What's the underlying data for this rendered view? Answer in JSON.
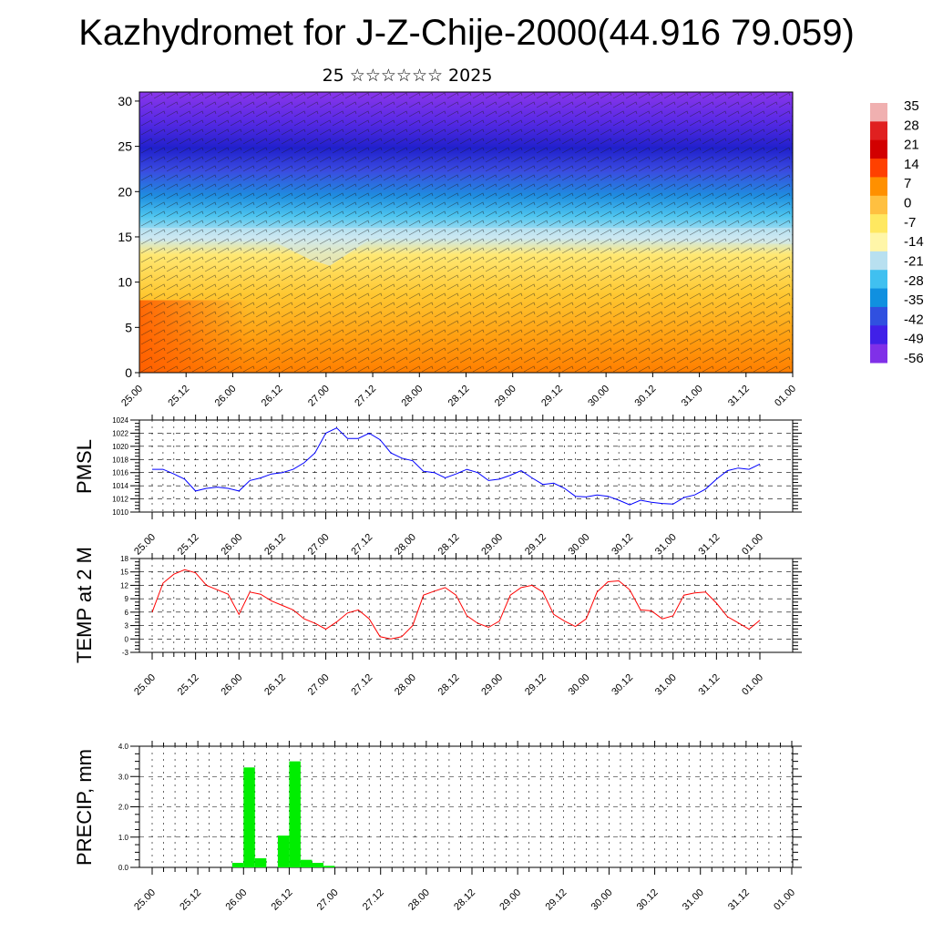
{
  "title": "Kazhydromet for J-Z-Chije-2000(44.916 79.059)",
  "subtitle": "25 ☆☆☆☆☆☆ 2025",
  "time_labels": [
    "25.00",
    "25.12",
    "26.00",
    "26.12",
    "27.00",
    "27.12",
    "28.00",
    "28.12",
    "29.00",
    "29.12",
    "30.00",
    "30.12",
    "31.00",
    "31.12",
    "01.00"
  ],
  "colors": {
    "pmsl": "#0000ff",
    "temp": "#ff0000",
    "precip": "#00ee00"
  },
  "chart_data": [
    {
      "type": "heatmap",
      "title": "",
      "xlabel": "",
      "ylabel": "",
      "x": [
        "25.00",
        "25.12",
        "26.00",
        "26.12",
        "27.00",
        "27.12",
        "28.00",
        "28.12",
        "29.00",
        "29.12",
        "30.00",
        "30.12",
        "31.00",
        "31.12",
        "01.00"
      ],
      "y_ticks": [
        0,
        5,
        10,
        15,
        20,
        25,
        30
      ],
      "ylim": [
        0,
        31
      ],
      "colorbar": {
        "labels": [
          35,
          28,
          21,
          14,
          7,
          0,
          -7,
          -14,
          -21,
          -28,
          -35,
          -42,
          -49,
          -56
        ],
        "colors": [
          "#f0b0b0",
          "#e02020",
          "#d20000",
          "#ff4000",
          "#ff9000",
          "#ffc040",
          "#ffe860",
          "#fff6a8",
          "#b8e0f0",
          "#40c0f0",
          "#1090e0",
          "#3050e0",
          "#4020e8",
          "#8030e8"
        ]
      },
      "overlay": "wind barbs"
    },
    {
      "type": "line",
      "ylabel": "PMSL",
      "ylim": [
        1010,
        1024
      ],
      "y_ticks": [
        1010,
        1012,
        1014,
        1016,
        1018,
        1020,
        1022,
        1024
      ],
      "series": [
        {
          "values": [
            1016.5,
            1016.5,
            1015.8,
            1015.0,
            1013.2,
            1013.6,
            1013.8,
            1013.6,
            1013.2,
            1014.8,
            1015.2,
            1015.8,
            1016.0,
            1016.5,
            1017.5,
            1019.0,
            1022.0,
            1022.8,
            1021.2,
            1021.2,
            1022.0,
            1021.0,
            1019.0,
            1018.2,
            1017.8,
            1016.2,
            1016.0,
            1015.2,
            1015.8,
            1016.5,
            1016.0,
            1014.8,
            1015.0,
            1015.6,
            1016.3,
            1015.2,
            1014.2,
            1014.4,
            1013.6,
            1012.4,
            1012.3,
            1012.6,
            1012.4,
            1011.8,
            1011.1,
            1011.8,
            1011.5,
            1011.3,
            1011.2,
            1012.2,
            1012.6,
            1013.5,
            1015.0,
            1016.3,
            1016.7,
            1016.5,
            1017.3
          ]
        }
      ]
    },
    {
      "type": "line",
      "ylabel": "TEMP at 2 M",
      "ylim": [
        -3,
        18
      ],
      "y_ticks": [
        -3,
        0,
        3,
        6,
        9,
        12,
        15,
        18
      ],
      "series": [
        {
          "values": [
            6.0,
            12.5,
            14.5,
            15.5,
            14.8,
            12.0,
            11.0,
            10.0,
            5.5,
            10.5,
            10.0,
            8.5,
            7.5,
            6.5,
            4.5,
            3.5,
            2.2,
            3.8,
            5.8,
            6.5,
            4.5,
            0.5,
            0.0,
            0.5,
            3.0,
            9.8,
            10.7,
            11.5,
            9.8,
            5.2,
            3.5,
            2.6,
            4.0,
            9.8,
            11.5,
            12.0,
            10.5,
            5.5,
            4.0,
            2.8,
            4.5,
            10.5,
            12.8,
            13.0,
            11.0,
            6.5,
            6.3,
            4.5,
            5.2,
            9.8,
            10.3,
            10.5,
            8.0,
            5.0,
            3.6,
            2.2,
            4.2
          ]
        }
      ]
    },
    {
      "type": "bar",
      "ylabel": "PRECIP, mm",
      "ylim": [
        0,
        4
      ],
      "y_ticks": [
        0.0,
        1.0,
        2.0,
        3.0,
        4.0
      ],
      "bar_interval_hours": 3,
      "values": [
        0,
        0,
        0,
        0,
        0,
        0,
        0,
        0.15,
        3.3,
        0.3,
        0,
        1.05,
        3.5,
        0.25,
        0.15,
        0.05,
        0,
        0,
        0,
        0,
        0,
        0,
        0,
        0,
        0,
        0,
        0,
        0,
        0,
        0,
        0,
        0,
        0,
        0,
        0,
        0,
        0,
        0,
        0,
        0,
        0,
        0,
        0,
        0,
        0,
        0,
        0,
        0,
        0,
        0,
        0,
        0,
        0,
        0,
        0,
        0
      ]
    }
  ]
}
